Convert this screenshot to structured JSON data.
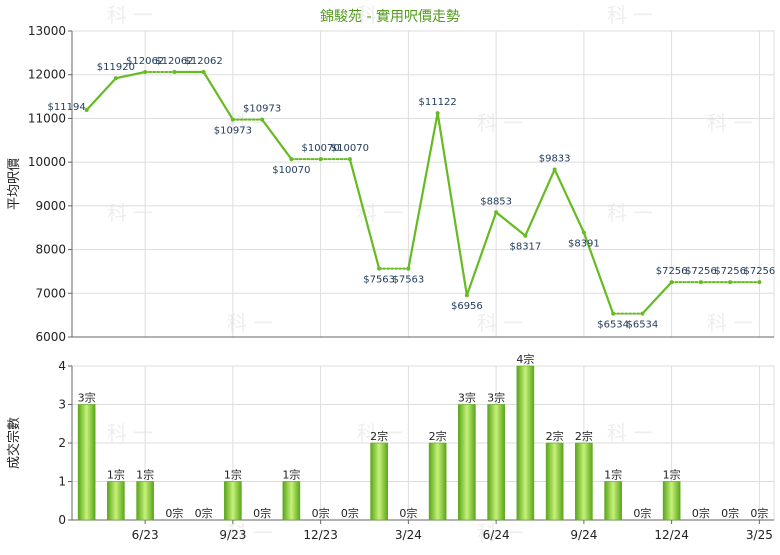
{
  "title": "錦駿苑 - 實用呎價走勢",
  "watermark_text": "科 一",
  "colors": {
    "accent": "#66bb22",
    "bar_dark": "#5aa61b",
    "bar_light": "#c7f17a",
    "grid": "#dddddd",
    "axis": "#666666"
  },
  "chart_data": [
    {
      "type": "line",
      "ylabel": "平均呎價",
      "ylim": [
        6000,
        13000
      ],
      "yticks": [
        6000,
        7000,
        8000,
        9000,
        10000,
        11000,
        12000,
        13000
      ],
      "x": [
        0,
        1,
        2,
        3,
        4,
        5,
        6,
        7,
        8,
        9,
        10,
        11,
        12,
        13,
        14,
        15,
        16,
        17,
        18,
        19,
        20,
        21,
        22,
        23
      ],
      "points": [
        {
          "y": 11194,
          "label": "$11194",
          "type": "actual"
        },
        {
          "y": 11920,
          "label": "$11920",
          "type": "actual"
        },
        {
          "y": 12062,
          "label": "$12062",
          "type": "actual"
        },
        {
          "y": 12062,
          "label": "$12062",
          "type": "carry"
        },
        {
          "y": 12062,
          "label": "$12062",
          "type": "actual"
        },
        {
          "y": 10973,
          "label": "$10973",
          "type": "actual"
        },
        {
          "y": 10973,
          "label": "$10973",
          "type": "carry"
        },
        {
          "y": 10070,
          "label": "$10070",
          "type": "actual"
        },
        {
          "y": 10070,
          "label": "$10070",
          "type": "carry"
        },
        {
          "y": 10070,
          "label": "$10070",
          "type": "carry"
        },
        {
          "y": 7563,
          "label": "$7563",
          "type": "actual"
        },
        {
          "y": 7563,
          "label": "$7563",
          "type": "carry"
        },
        {
          "y": 11122,
          "label": "$11122",
          "type": "actual"
        },
        {
          "y": 6956,
          "label": "$6956",
          "type": "actual"
        },
        {
          "y": 8853,
          "label": "$8853",
          "type": "actual"
        },
        {
          "y": 8317,
          "label": "$8317",
          "type": "actual"
        },
        {
          "y": 9833,
          "label": "$9833",
          "type": "actual"
        },
        {
          "y": 8391,
          "label": "$8391",
          "type": "actual"
        },
        {
          "y": 6534,
          "label": "$6534",
          "type": "actual"
        },
        {
          "y": 6534,
          "label": "$6534",
          "type": "carry"
        },
        {
          "y": 7256,
          "label": "$7256",
          "type": "actual"
        },
        {
          "y": 7256,
          "label": "$7256",
          "type": "carry"
        },
        {
          "y": 7256,
          "label": "$7256",
          "type": "carry"
        },
        {
          "y": 7256,
          "label": "$7256",
          "type": "carry"
        }
      ],
      "grid": true
    },
    {
      "type": "bar",
      "ylabel": "成交宗數",
      "ylim": [
        0,
        4
      ],
      "yticks": [
        0,
        1,
        2,
        3,
        4
      ],
      "values": [
        3,
        1,
        1,
        0,
        0,
        1,
        0,
        1,
        0,
        0,
        2,
        0,
        2,
        3,
        3,
        4,
        2,
        2,
        1,
        0,
        1,
        0,
        0,
        0
      ],
      "labels": [
        "3宗",
        "1宗",
        "1宗",
        "0宗",
        "0宗",
        "1宗",
        "0宗",
        "1宗",
        "0宗",
        "0宗",
        "2宗",
        "0宗",
        "2宗",
        "3宗",
        "3宗",
        "4宗",
        "2宗",
        "2宗",
        "1宗",
        "0宗",
        "1宗",
        "0宗",
        "0宗",
        "0宗"
      ],
      "xticks": [
        {
          "at": 2,
          "label": "6/23"
        },
        {
          "at": 5,
          "label": "9/23"
        },
        {
          "at": 8,
          "label": "12/23"
        },
        {
          "at": 11,
          "label": "3/24"
        },
        {
          "at": 14,
          "label": "6/24"
        },
        {
          "at": 17,
          "label": "9/24"
        },
        {
          "at": 20,
          "label": "12/24"
        },
        {
          "at": 23,
          "label": "3/25"
        }
      ],
      "grid": true
    }
  ]
}
